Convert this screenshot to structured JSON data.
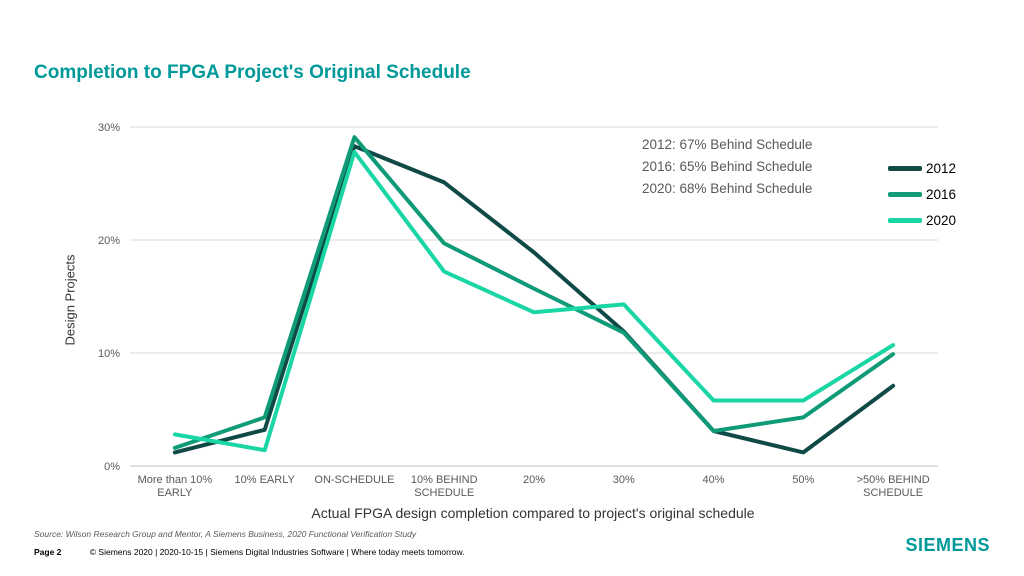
{
  "slide": {
    "title": "Completion to FPGA Project's Original Schedule",
    "source": "Source: Wilson Research Group and Mentor, A Siemens Business, 2020 Functional Verification Study",
    "page_label": "Page 2",
    "footer": "© Siemens 2020 | 2020-10-15 | Siemens Digital Industries Software | Where today meets tomorrow.",
    "logo": "SIEMENS"
  },
  "annotations": [
    "2012: 67% Behind Schedule",
    "2016: 65% Behind Schedule",
    "2020: 68% Behind Schedule"
  ],
  "colors": {
    "accent": "#009999",
    "s2012": "#0f4a46",
    "s2016": "#0f9b77",
    "s2020": "#19d6a4",
    "grid": "#d9d9d9"
  },
  "chart_data": {
    "type": "line",
    "xlabel": "Actual FPGA design completion compared to project's original schedule",
    "ylabel": "Design Projects",
    "categories": [
      [
        "More than 10%",
        "EARLY"
      ],
      [
        "10% EARLY"
      ],
      [
        "ON-SCHEDULE"
      ],
      [
        "10% BEHIND",
        "SCHEDULE"
      ],
      [
        "20%"
      ],
      [
        "30%"
      ],
      [
        "40%"
      ],
      [
        "50%"
      ],
      [
        ">50% BEHIND",
        "SCHEDULE"
      ]
    ],
    "ylim": [
      0,
      30
    ],
    "yticks": [
      0,
      10,
      20,
      30
    ],
    "ytick_labels": [
      "0%",
      "10%",
      "20%",
      "30%"
    ],
    "grid": true,
    "legend_position": "right",
    "series": [
      {
        "name": "2012",
        "color": "#0f4a46",
        "values": [
          1.2,
          3.2,
          28.3,
          25.1,
          18.9,
          11.9,
          3.1,
          1.2,
          7.1
        ]
      },
      {
        "name": "2016",
        "color": "#0f9b77",
        "values": [
          1.6,
          4.3,
          29.1,
          19.7,
          15.7,
          11.8,
          3.1,
          4.3,
          9.9
        ]
      },
      {
        "name": "2020",
        "color": "#19d6a4",
        "values": [
          2.8,
          1.4,
          27.8,
          17.2,
          13.6,
          14.3,
          5.8,
          5.8,
          10.7
        ]
      }
    ]
  }
}
